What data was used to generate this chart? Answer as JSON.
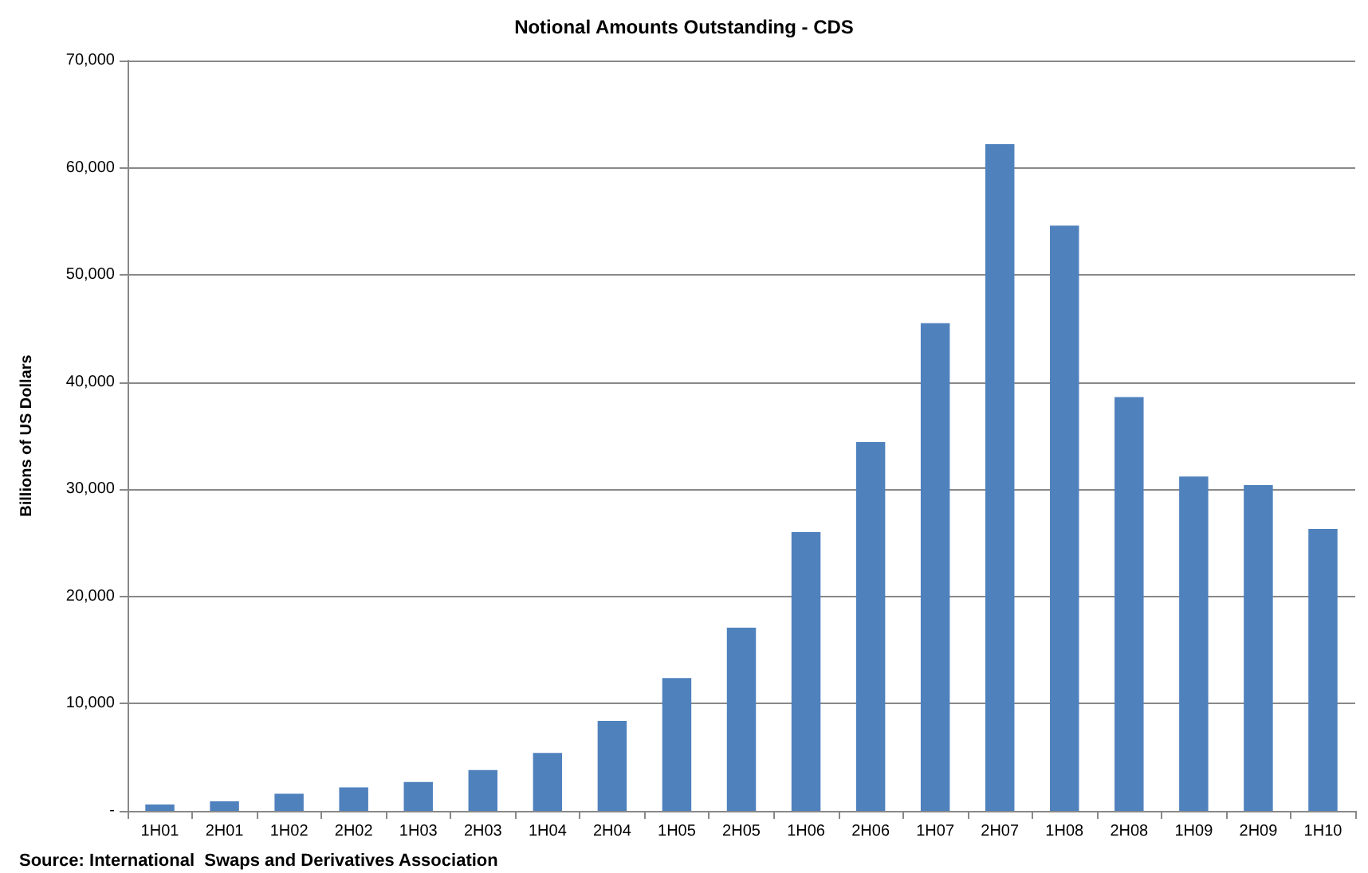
{
  "chart_data": {
    "type": "bar",
    "title": "Notional Amounts Outstanding - CDS",
    "ylabel": "Billions of US Dollars",
    "annotations": [
      "Source: International  Swaps and Derivatives Association"
    ],
    "categories": [
      "1H01",
      "2H01",
      "1H02",
      "2H02",
      "1H03",
      "2H03",
      "1H04",
      "2H04",
      "1H05",
      "2H05",
      "1H06",
      "2H06",
      "1H07",
      "2H07",
      "1H08",
      "2H08",
      "1H09",
      "2H09",
      "1H10"
    ],
    "values": [
      600,
      900,
      1600,
      2200,
      2700,
      3800,
      5400,
      8400,
      12400,
      17100,
      26000,
      34400,
      45500,
      62200,
      54600,
      38600,
      31200,
      30400,
      26300
    ],
    "color": "#4f81bd",
    "ylim": [
      0,
      70000
    ],
    "yticks": [
      {
        "value": 0,
        "label": "-"
      },
      {
        "value": 10000,
        "label": "10,000"
      },
      {
        "value": 20000,
        "label": "20,000"
      },
      {
        "value": 30000,
        "label": "30,000"
      },
      {
        "value": 40000,
        "label": "40,000"
      },
      {
        "value": 50000,
        "label": "50,000"
      },
      {
        "value": 60000,
        "label": "60,000"
      },
      {
        "value": 70000,
        "label": "70,000"
      }
    ],
    "grid": "y"
  }
}
